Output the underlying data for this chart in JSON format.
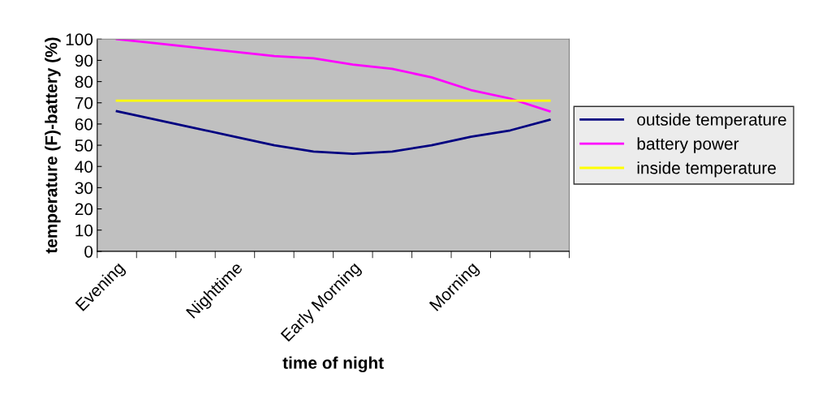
{
  "chart_data": {
    "type": "line",
    "xlabel": "time of night",
    "ylabel": "temperature (F)-battery (%)",
    "categories": [
      "Evening",
      null,
      null,
      "Nighttime",
      null,
      null,
      "Early Morning",
      null,
      null,
      "Morning",
      null,
      null
    ],
    "series": [
      {
        "name": "outside temperature",
        "color": "#000080",
        "values": [
          66,
          62,
          58,
          54,
          50,
          47,
          46,
          47,
          50,
          54,
          57,
          62
        ]
      },
      {
        "name": "battery power",
        "color": "#ff00ff",
        "values": [
          100,
          98,
          96,
          94,
          92,
          91,
          88,
          86,
          82,
          76,
          72,
          66
        ]
      },
      {
        "name": "inside temperature",
        "color": "#ffff00",
        "values": [
          71,
          71,
          71,
          71,
          71,
          71,
          71,
          71,
          71,
          71,
          71,
          71
        ]
      }
    ],
    "ylim": [
      0,
      100
    ],
    "yticks": [
      0,
      10,
      20,
      30,
      40,
      50,
      60,
      70,
      80,
      90,
      100
    ],
    "grid": false,
    "legend": "right",
    "marker": "none",
    "line_style": "solid"
  }
}
